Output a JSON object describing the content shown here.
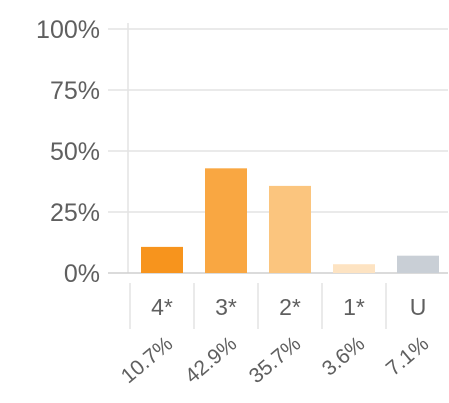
{
  "chart_data": {
    "type": "bar",
    "categories": [
      "4*",
      "3*",
      "2*",
      "1*",
      "U"
    ],
    "values": [
      10.7,
      42.9,
      35.7,
      3.6,
      7.1
    ],
    "value_labels": [
      "10.7%",
      "42.9%",
      "35.7%",
      "3.6%",
      "7.1%"
    ],
    "colors": [
      "#f7941d",
      "#f9a742",
      "#fbc57e",
      "#fde3c2",
      "#c9cfd6"
    ],
    "yticks": [
      "0%",
      "25%",
      "50%",
      "75%",
      "100%"
    ],
    "ylim": [
      0,
      100
    ],
    "grid": true,
    "legend": "none"
  }
}
